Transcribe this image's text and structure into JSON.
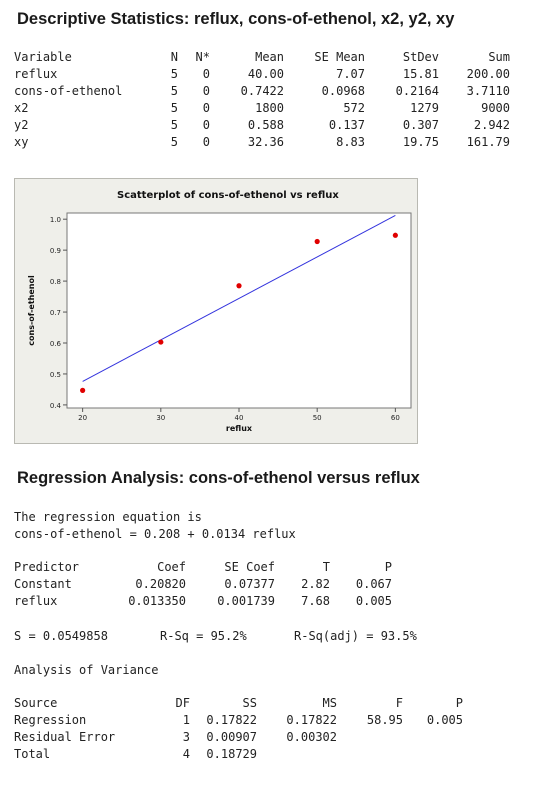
{
  "desc": {
    "title": "Descriptive Statistics: reflux, cons-of-ethenol, x2, y2, xy",
    "headers": [
      "Variable",
      "N",
      "N*",
      "Mean",
      "SE Mean",
      "StDev",
      "Sum"
    ],
    "rows": [
      [
        "reflux",
        "5",
        "0",
        "40.00",
        "7.07",
        "15.81",
        "200.00"
      ],
      [
        "cons-of-ethenol",
        "5",
        "0",
        "0.7422",
        "0.0968",
        "0.2164",
        "3.7110"
      ],
      [
        "x2",
        "5",
        "0",
        "1800",
        "572",
        "1279",
        "9000"
      ],
      [
        "y2",
        "5",
        "0",
        "0.588",
        "0.137",
        "0.307",
        "2.942"
      ],
      [
        "xy",
        "5",
        "0",
        "32.36",
        "8.83",
        "19.75",
        "161.79"
      ]
    ]
  },
  "chart_data": {
    "type": "scatter",
    "title": "Scatterplot of cons-of-ethenol vs reflux",
    "xlabel": "reflux",
    "ylabel": "cons-of-ethenol",
    "xlim": [
      18,
      62
    ],
    "ylim": [
      0.39,
      1.02
    ],
    "xticks": [
      "20",
      "30",
      "40",
      "50",
      "60"
    ],
    "xtick_values": [
      20,
      30,
      40,
      50,
      60
    ],
    "yticks": [
      "0.4",
      "0.5",
      "0.6",
      "0.7",
      "0.8",
      "0.9",
      "1.0"
    ],
    "ytick_values": [
      0.4,
      0.5,
      0.6,
      0.7,
      0.8,
      0.9,
      1.0
    ],
    "points": [
      {
        "x": 20,
        "y": 0.447
      },
      {
        "x": 30,
        "y": 0.603
      },
      {
        "x": 40,
        "y": 0.785
      },
      {
        "x": 50,
        "y": 0.928
      },
      {
        "x": 60,
        "y": 0.948
      }
    ],
    "fit_line": {
      "intercept": 0.208,
      "slope": 0.0134
    },
    "point_color": "#e00000",
    "line_color": "#3333dd",
    "background": "#efefea",
    "plot_background": "#ffffff"
  },
  "regression": {
    "title": "Regression Analysis: cons-of-ethenol versus reflux",
    "eq_heading": "The regression equation is",
    "equation": "cons-of-ethenol = 0.208 + 0.0134 reflux",
    "coef_headers": [
      "Predictor",
      "Coef",
      "SE Coef",
      "T",
      "P"
    ],
    "coef_rows": [
      [
        "Constant",
        "0.20820",
        "0.07377",
        "2.82",
        "0.067"
      ],
      [
        "reflux",
        "0.013350",
        "0.001739",
        "7.68",
        "0.005"
      ]
    ],
    "s": "S = 0.0549858",
    "rsq": "R-Sq = 95.2%",
    "rsq_adj": "R-Sq(adj) = 93.5%",
    "anova_heading": "Analysis of Variance",
    "anova_headers": [
      "Source",
      "DF",
      "SS",
      "MS",
      "F",
      "P"
    ],
    "anova_rows": [
      [
        "Regression",
        "1",
        "0.17822",
        "0.17822",
        "58.95",
        "0.005"
      ],
      [
        "Residual Error",
        "3",
        "0.00907",
        "0.00302",
        "",
        ""
      ],
      [
        "Total",
        "4",
        "0.18729",
        "",
        "",
        ""
      ]
    ]
  }
}
